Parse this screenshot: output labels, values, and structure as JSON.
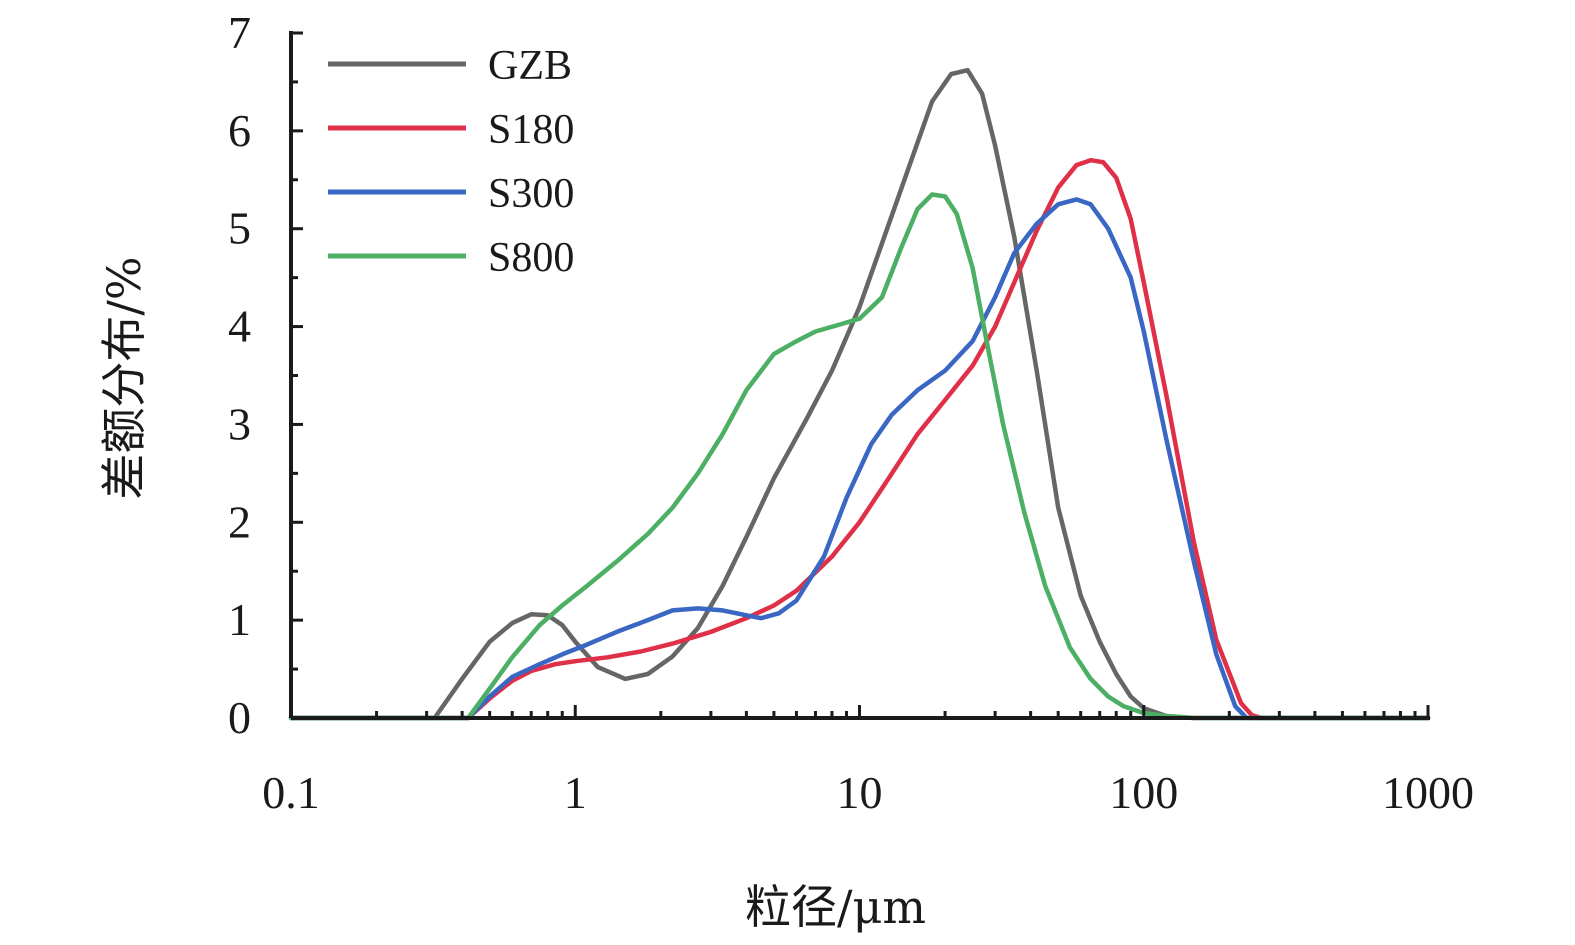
{
  "chart_data": {
    "type": "line",
    "title": "",
    "xlabel": "粒径/μm",
    "ylabel": "差额分布/%",
    "xscale": "log",
    "xlim": [
      0.1,
      1000
    ],
    "ylim": [
      0,
      7
    ],
    "x_ticks": [
      "0.1",
      "1",
      "10",
      "100",
      "1000"
    ],
    "y_ticks": [
      "0",
      "1",
      "2",
      "3",
      "4",
      "5",
      "6",
      "7"
    ],
    "grid": false,
    "legend_position": "top-left",
    "series": [
      {
        "name": "GZB",
        "color": "#666666",
        "x": [
          0.1,
          0.32,
          0.4,
          0.5,
          0.6,
          0.7,
          0.8,
          0.9,
          1.0,
          1.2,
          1.5,
          1.8,
          2.2,
          2.7,
          3.3,
          4.0,
          5.0,
          6.5,
          8.0,
          10,
          12,
          15,
          18,
          21,
          24,
          27,
          30,
          35,
          42,
          50,
          60,
          70,
          80,
          90,
          100,
          120,
          150,
          1000
        ],
        "y": [
          0,
          0,
          0.4,
          0.78,
          0.97,
          1.06,
          1.05,
          0.95,
          0.78,
          0.52,
          0.4,
          0.45,
          0.63,
          0.92,
          1.35,
          1.85,
          2.45,
          3.05,
          3.55,
          4.2,
          4.85,
          5.65,
          6.3,
          6.58,
          6.62,
          6.38,
          5.85,
          4.92,
          3.55,
          2.15,
          1.25,
          0.78,
          0.45,
          0.22,
          0.1,
          0.02,
          0,
          0
        ]
      },
      {
        "name": "S180",
        "color": "#e03048",
        "x": [
          0.1,
          0.42,
          0.5,
          0.6,
          0.7,
          0.85,
          1.0,
          1.3,
          1.7,
          2.2,
          3.0,
          4.0,
          5.0,
          6.0,
          8.0,
          10,
          13,
          16,
          20,
          25,
          30,
          35,
          42,
          50,
          58,
          65,
          72,
          80,
          90,
          100,
          120,
          150,
          180,
          220,
          240,
          260,
          1000
        ],
        "y": [
          0,
          0,
          0.2,
          0.38,
          0.48,
          0.55,
          0.58,
          0.62,
          0.68,
          0.76,
          0.88,
          1.02,
          1.15,
          1.3,
          1.65,
          2.0,
          2.5,
          2.9,
          3.25,
          3.6,
          4.0,
          4.45,
          4.98,
          5.42,
          5.65,
          5.7,
          5.68,
          5.52,
          5.1,
          4.45,
          3.3,
          1.8,
          0.8,
          0.15,
          0.03,
          0,
          0
        ]
      },
      {
        "name": "S300",
        "color": "#3a66c4",
        "x": [
          0.1,
          0.42,
          0.5,
          0.6,
          0.75,
          0.9,
          1.1,
          1.4,
          1.8,
          2.2,
          2.7,
          3.3,
          4.0,
          4.5,
          5.2,
          6.0,
          7.5,
          9.0,
          11,
          13,
          16,
          20,
          25,
          30,
          35,
          42,
          50,
          58,
          65,
          75,
          90,
          100,
          120,
          150,
          180,
          210,
          230,
          1000
        ],
        "y": [
          0,
          0,
          0.22,
          0.42,
          0.55,
          0.65,
          0.75,
          0.88,
          1.0,
          1.1,
          1.12,
          1.1,
          1.05,
          1.02,
          1.07,
          1.2,
          1.65,
          2.25,
          2.8,
          3.1,
          3.35,
          3.55,
          3.85,
          4.3,
          4.75,
          5.05,
          5.25,
          5.3,
          5.25,
          5.0,
          4.5,
          3.95,
          2.85,
          1.6,
          0.65,
          0.12,
          0,
          0
        ]
      },
      {
        "name": "S800",
        "color": "#4caf64",
        "x": [
          0.1,
          0.42,
          0.5,
          0.6,
          0.75,
          0.9,
          1.1,
          1.4,
          1.8,
          2.2,
          2.7,
          3.3,
          4.0,
          5.0,
          6.0,
          7.0,
          8.5,
          10,
          12,
          14,
          16,
          18,
          20,
          22,
          25,
          28,
          32,
          38,
          45,
          55,
          65,
          75,
          85,
          100,
          120,
          150,
          1000
        ],
        "y": [
          0,
          0,
          0.3,
          0.62,
          0.95,
          1.15,
          1.35,
          1.6,
          1.88,
          2.15,
          2.5,
          2.9,
          3.35,
          3.72,
          3.85,
          3.95,
          4.02,
          4.08,
          4.3,
          4.8,
          5.2,
          5.35,
          5.33,
          5.15,
          4.6,
          3.85,
          3.0,
          2.1,
          1.35,
          0.72,
          0.4,
          0.22,
          0.12,
          0.05,
          0.02,
          0,
          0
        ]
      }
    ]
  }
}
